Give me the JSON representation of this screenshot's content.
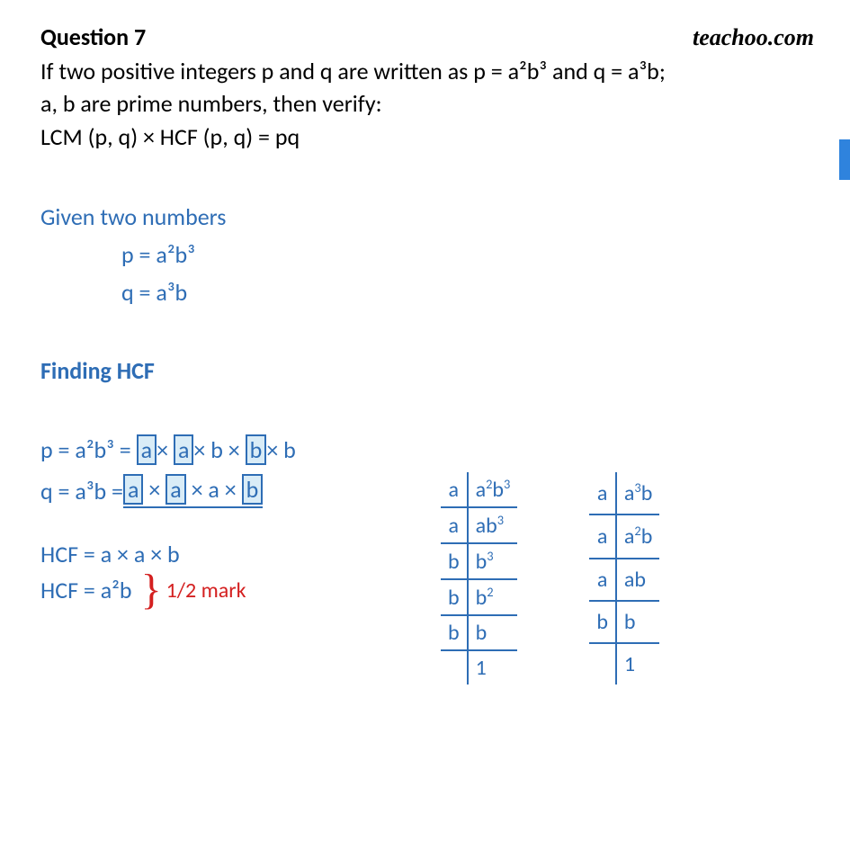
{
  "header": {
    "title": "Question 7",
    "brand": "teachoo.com"
  },
  "question": {
    "line1": "If two positive integers p and q are written as p = a²b³ and q = a³b;",
    "line2": "a, b are prime numbers, then verify:",
    "line3": "LCM (p, q) × HCF (p, q) = pq"
  },
  "given": {
    "heading": "Given two numbers",
    "p": "p = a²b³",
    "q": "q = a³b"
  },
  "hcf": {
    "heading": "Finding HCF",
    "p_prefix": "p = a²b³ =",
    "q_prefix": "q = a³b  =",
    "result1": "HCF = a × a × b",
    "result2": "HCF = a²b",
    "mark": "1/2 mark"
  },
  "factor_p": {
    "a1": "a",
    "mul1": "×",
    "a2": "a",
    "mul2": "× b ×",
    "b1": "b",
    "mul3": "× b"
  },
  "factor_q": {
    "a1": "a",
    "mul1": "×",
    "a2": "a",
    "mul2": "× a ×",
    "b1": "b"
  },
  "table_p": {
    "rows": [
      [
        "a",
        "a²b³"
      ],
      [
        "a",
        "ab³"
      ],
      [
        "b",
        "b³"
      ],
      [
        "b",
        "b²"
      ],
      [
        "b",
        "b"
      ],
      [
        "",
        "1"
      ]
    ]
  },
  "table_q": {
    "rows": [
      [
        "a",
        "a³b"
      ],
      [
        "a",
        "a²b"
      ],
      [
        "a",
        "ab"
      ],
      [
        "b",
        "b"
      ],
      [
        "",
        "1"
      ]
    ]
  },
  "colors": {
    "blue": "#2e6db5",
    "red": "#d42020",
    "accent_bar": "#2f83dd",
    "highlight_bg": "#d9ecf7"
  }
}
